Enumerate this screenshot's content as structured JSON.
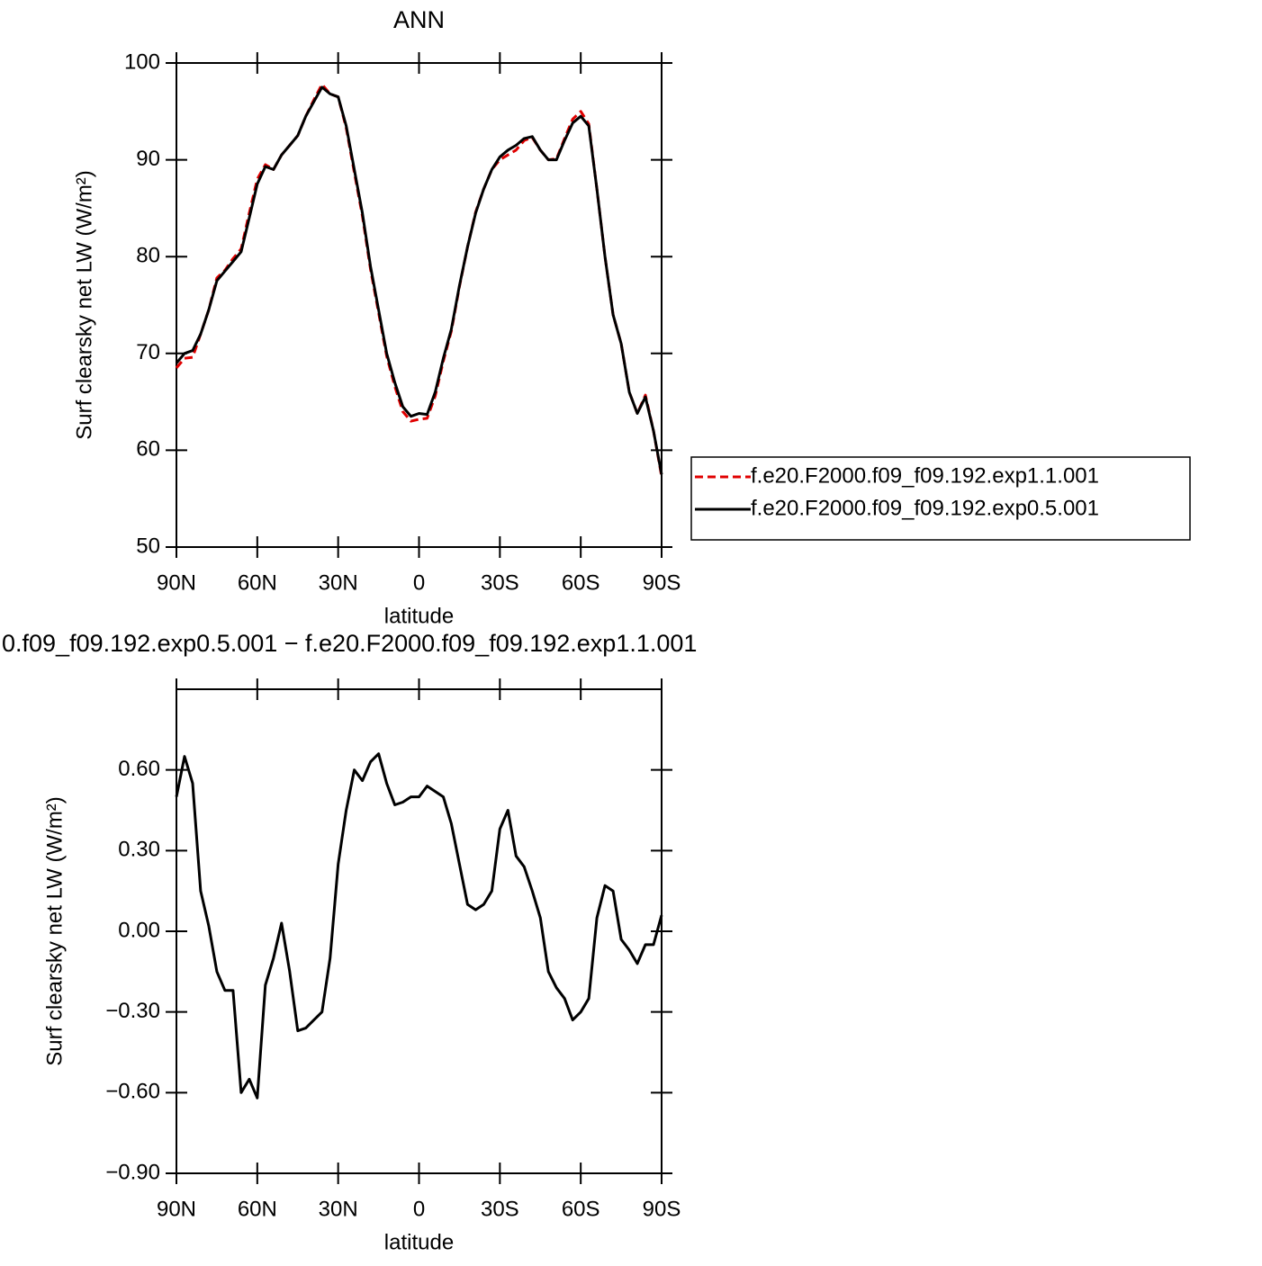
{
  "chart_data": [
    {
      "type": "line",
      "title": "ANN",
      "xlabel": "latitude",
      "ylabel": "Surf clearsky net LW (W/m²)",
      "x": [
        90,
        87,
        84,
        81,
        78,
        75,
        72,
        69,
        66,
        63,
        60,
        57,
        54,
        51,
        48,
        45,
        42,
        39,
        36,
        33,
        30,
        27,
        24,
        21,
        18,
        15,
        12,
        9,
        6,
        3,
        0,
        -3,
        -6,
        -9,
        -12,
        -15,
        -18,
        -21,
        -24,
        -27,
        -30,
        -33,
        -36,
        -39,
        -42,
        -45,
        -48,
        -51,
        -54,
        -57,
        -60,
        -63,
        -66,
        -69,
        -72,
        -75,
        -78,
        -81,
        -84,
        -87,
        -90
      ],
      "series": [
        {
          "name": "f.e20.F2000.f09_f09.192.exp1.1.001",
          "color": "#e00000",
          "linestyle": "dashed",
          "values": [
            68.5,
            69.5,
            69.6,
            72.0,
            74.5,
            77.8,
            78.6,
            79.8,
            80.8,
            84.5,
            88.0,
            89.5,
            89.0,
            90.5,
            91.5,
            92.5,
            94.5,
            96.2,
            97.8,
            96.8,
            96.5,
            93.3,
            88.7,
            84.2,
            78.7,
            74.2,
            69.7,
            66.6,
            64.0,
            63.0,
            63.2,
            63.3,
            65.6,
            69.2,
            72.3,
            76.9,
            81.0,
            84.6,
            87.0,
            89.0,
            90.0,
            90.5,
            91.0,
            92.0,
            92.3,
            91.0,
            90.0,
            90.1,
            92.2,
            94.2,
            95.0,
            93.7,
            87.0,
            80.0,
            74.0,
            71.0,
            66.0,
            63.8,
            65.7,
            62.0,
            57.3
          ]
        },
        {
          "name": "f.e20.F2000.f09_f09.192.exp0.5.001",
          "color": "#000000",
          "linestyle": "solid",
          "values": [
            69.0,
            70.0,
            70.3,
            72.0,
            74.5,
            77.5,
            78.5,
            79.5,
            80.5,
            84.0,
            87.5,
            89.3,
            89.0,
            90.5,
            91.5,
            92.5,
            94.5,
            96.0,
            97.5,
            96.8,
            96.5,
            93.5,
            89.0,
            84.5,
            79.0,
            74.5,
            70.0,
            67.0,
            64.5,
            63.5,
            63.8,
            63.7,
            66.0,
            69.5,
            72.5,
            77.0,
            81.0,
            84.5,
            87.0,
            89.0,
            90.3,
            91.0,
            91.5,
            92.2,
            92.4,
            91.0,
            90.0,
            90.0,
            92.0,
            93.8,
            94.5,
            93.5,
            87.0,
            80.0,
            74.0,
            71.0,
            66.0,
            63.8,
            65.5,
            62.0,
            57.5
          ]
        }
      ],
      "xlim": [
        90,
        -90
      ],
      "xticks": [
        {
          "value": 90,
          "label": "90N"
        },
        {
          "value": 60,
          "label": "60N"
        },
        {
          "value": 30,
          "label": "30N"
        },
        0,
        {
          "value": -30,
          "label": "30S"
        },
        {
          "value": -60,
          "label": "60S"
        },
        {
          "value": -90,
          "label": "90S"
        }
      ],
      "ylim": [
        50,
        100
      ],
      "yticks": [
        50,
        60,
        70,
        80,
        90,
        100
      ],
      "legend": "right"
    },
    {
      "type": "line",
      "title": "0.f09_f09.192.exp0.5.001 − f.e20.F2000.f09_f09.192.exp1.1.001",
      "xlabel": "latitude",
      "ylabel": "Surf clearsky net LW (W/m²)",
      "x": [
        90,
        87,
        84,
        81,
        78,
        75,
        72,
        69,
        66,
        63,
        60,
        57,
        54,
        51,
        48,
        45,
        42,
        39,
        36,
        33,
        30,
        27,
        24,
        21,
        18,
        15,
        12,
        9,
        6,
        3,
        0,
        -3,
        -6,
        -9,
        -12,
        -15,
        -18,
        -21,
        -24,
        -27,
        -30,
        -33,
        -36,
        -39,
        -42,
        -45,
        -48,
        -51,
        -54,
        -57,
        -60,
        -63,
        -66,
        -69,
        -72,
        -75,
        -78,
        -81,
        -84,
        -87,
        -90
      ],
      "series": [
        {
          "color": "#000000",
          "linestyle": "solid",
          "values": [
            0.5,
            0.65,
            0.55,
            0.15,
            0.02,
            -0.15,
            -0.22,
            -0.22,
            -0.6,
            -0.55,
            -0.62,
            -0.2,
            -0.1,
            0.03,
            -0.15,
            -0.37,
            -0.36,
            -0.33,
            -0.3,
            -0.1,
            0.25,
            0.45,
            0.6,
            0.56,
            0.63,
            0.66,
            0.55,
            0.47,
            0.48,
            0.5,
            0.5,
            0.54,
            0.52,
            0.5,
            0.4,
            0.25,
            0.1,
            0.08,
            0.1,
            0.15,
            0.38,
            0.45,
            0.28,
            0.24,
            0.15,
            0.05,
            -0.15,
            -0.21,
            -0.25,
            -0.33,
            -0.3,
            -0.25,
            0.05,
            0.17,
            0.15,
            -0.03,
            -0.07,
            -0.12,
            -0.05,
            -0.05,
            0.06
          ]
        }
      ],
      "xlim": [
        90,
        -90
      ],
      "xticks": [
        {
          "value": 90,
          "label": "90N"
        },
        {
          "value": 60,
          "label": "60N"
        },
        {
          "value": 30,
          "label": "30N"
        },
        0,
        {
          "value": -30,
          "label": "30S"
        },
        {
          "value": -60,
          "label": "60S"
        },
        {
          "value": -90,
          "label": "90S"
        }
      ],
      "ylim": [
        -0.9,
        0.9
      ],
      "yticks": [
        {
          "value": -0.9,
          "label": "−0.90"
        },
        {
          "value": -0.6,
          "label": "−0.60"
        },
        {
          "value": -0.3,
          "label": "−0.30"
        },
        {
          "value": 0,
          "label": "0.00"
        },
        {
          "value": 0.3,
          "label": "0.30"
        },
        {
          "value": 0.6,
          "label": "0.60"
        }
      ]
    }
  ]
}
